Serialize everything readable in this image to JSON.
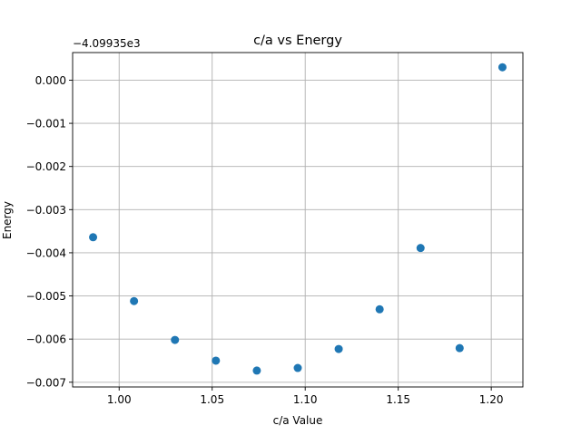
{
  "chart_data": {
    "type": "scatter",
    "title": "c/a vs Energy",
    "xlabel": "c/a Value",
    "ylabel": "Energy",
    "y_offset_label": "−4.09935e3",
    "xlim": [
      0.975,
      1.217
    ],
    "ylim": [
      -0.00711,
      0.00064
    ],
    "xticks": [
      1.0,
      1.05,
      1.1,
      1.15,
      1.2
    ],
    "xtick_labels": [
      "1.00",
      "1.05",
      "1.10",
      "1.15",
      "1.20"
    ],
    "yticks": [
      0.0,
      -0.001,
      -0.002,
      -0.003,
      -0.004,
      -0.005,
      -0.006,
      -0.007
    ],
    "ytick_labels": [
      "0.000",
      "−0.001",
      "−0.002",
      "−0.003",
      "−0.004",
      "−0.005",
      "−0.006",
      "−0.007"
    ],
    "grid": true,
    "marker_color": "#1f77b4",
    "x": [
      0.986,
      1.008,
      1.03,
      1.052,
      1.074,
      1.096,
      1.118,
      1.14,
      1.162,
      1.183,
      1.206
    ],
    "y": [
      -0.00364,
      -0.00512,
      -0.00602,
      -0.0065,
      -0.00673,
      -0.00667,
      -0.00623,
      -0.00531,
      -0.00389,
      -0.00621,
      0.0003
    ]
  }
}
